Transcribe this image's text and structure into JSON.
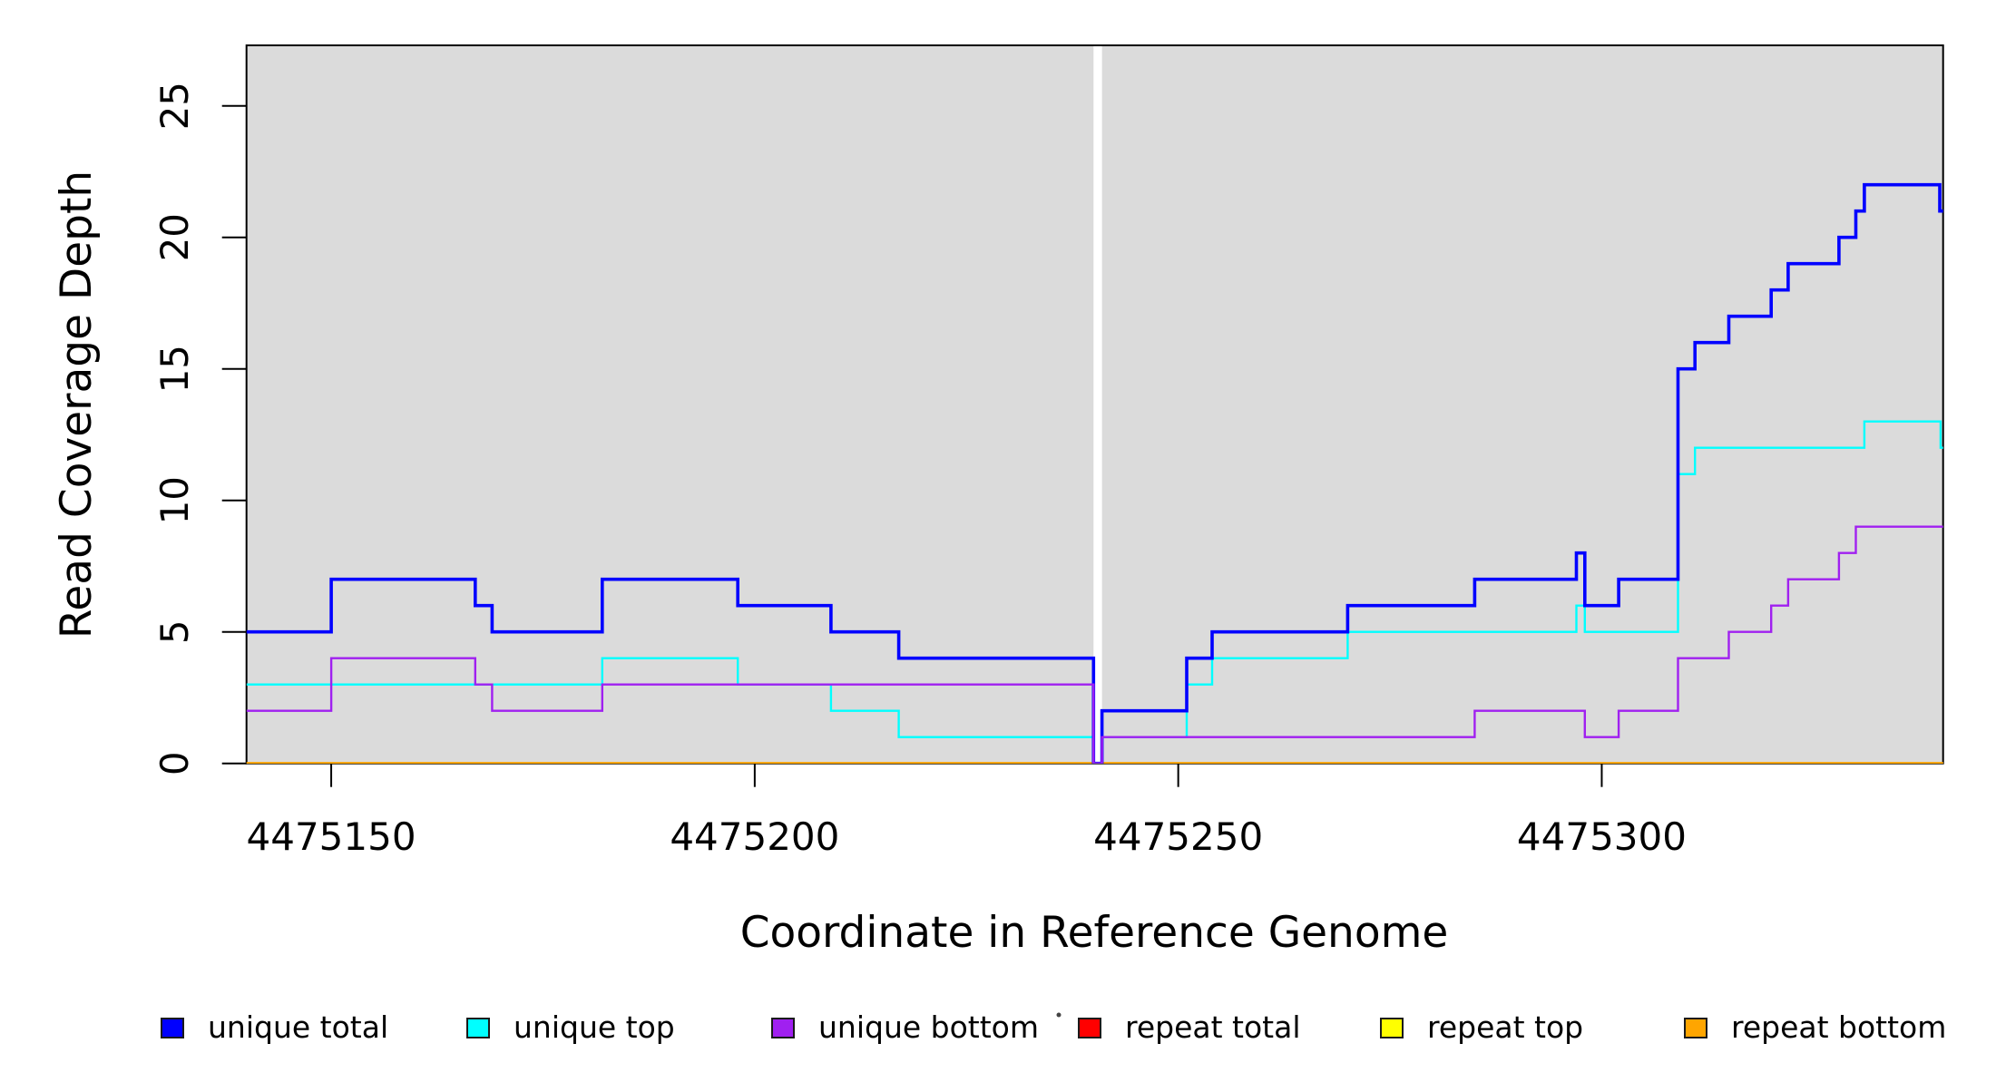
{
  "chart_data": {
    "type": "line",
    "subtype": "step",
    "title": "",
    "xlabel": "Coordinate in Reference Genome",
    "ylabel": "Read Coverage Depth",
    "xlim": [
      4475140,
      4475340.3
    ],
    "ylim": [
      0,
      27.3
    ],
    "grid": false,
    "legend_position": "bottom",
    "page_background": "#FFFFFF",
    "plot_background": "#DBDBDB",
    "axis_color": "#000000",
    "x_ticks": [
      {
        "value": 4475150,
        "label": "4475150"
      },
      {
        "value": 4475200,
        "label": "4475200"
      },
      {
        "value": 4475250,
        "label": "4475250"
      },
      {
        "value": 4475300,
        "label": "4475300"
      }
    ],
    "y_ticks": [
      {
        "value": 0,
        "label": "0"
      },
      {
        "value": 5,
        "label": "5"
      },
      {
        "value": 10,
        "label": "10"
      },
      {
        "value": 15,
        "label": "15"
      },
      {
        "value": 20,
        "label": "20"
      },
      {
        "value": 25,
        "label": "25"
      }
    ],
    "coverage_gap": {
      "from": 4475240,
      "to": 4475241,
      "color": "#FFFFFF"
    },
    "series": [
      {
        "name": "repeat total",
        "color": "#FF0000",
        "line_width": 2.4,
        "steps": [
          [
            4475140,
            0
          ]
        ]
      },
      {
        "name": "repeat top",
        "color": "#FFFF00",
        "line_width": 2.4,
        "steps": [
          [
            4475140,
            0
          ]
        ]
      },
      {
        "name": "repeat bottom",
        "color": "#FFA500",
        "line_width": 3.2,
        "steps": [
          [
            4475140,
            0
          ]
        ]
      },
      {
        "name": "unique top",
        "color": "#00FFFF",
        "line_width": 2.4,
        "steps": [
          [
            4475140,
            3
          ],
          [
            4475182,
            4
          ],
          [
            4475198,
            3
          ],
          [
            4475209,
            2
          ],
          [
            4475217,
            1
          ],
          [
            4475240,
            0
          ],
          [
            4475241,
            1
          ],
          [
            4475251,
            3
          ],
          [
            4475254,
            4
          ],
          [
            4475270,
            5
          ],
          [
            4475297,
            6
          ],
          [
            4475298,
            5
          ],
          [
            4475309,
            11
          ],
          [
            4475311,
            12
          ],
          [
            4475331,
            13
          ],
          [
            4475340,
            12
          ]
        ]
      },
      {
        "name": "unique total",
        "color": "#0000FF",
        "line_width": 3.6,
        "steps": [
          [
            4475140,
            5
          ],
          [
            4475150,
            7
          ],
          [
            4475167,
            6
          ],
          [
            4475169,
            5
          ],
          [
            4475182,
            7
          ],
          [
            4475198,
            6
          ],
          [
            4475209,
            5
          ],
          [
            4475217,
            4
          ],
          [
            4475240,
            0
          ],
          [
            4475241,
            2
          ],
          [
            4475251,
            4
          ],
          [
            4475254,
            5
          ],
          [
            4475270,
            6
          ],
          [
            4475285,
            7
          ],
          [
            4475297,
            8
          ],
          [
            4475298,
            6
          ],
          [
            4475302,
            7
          ],
          [
            4475309,
            15
          ],
          [
            4475311,
            16
          ],
          [
            4475315,
            17
          ],
          [
            4475320,
            18
          ],
          [
            4475322,
            19
          ],
          [
            4475328,
            20
          ],
          [
            4475330,
            21
          ],
          [
            4475331,
            22
          ],
          [
            4475339.9,
            21
          ]
        ]
      },
      {
        "name": "unique bottom",
        "color": "#A020F0",
        "line_width": 2.4,
        "steps": [
          [
            4475140,
            2
          ],
          [
            4475150,
            4
          ],
          [
            4475167,
            3
          ],
          [
            4475169,
            2
          ],
          [
            4475182,
            3
          ],
          [
            4475240,
            0
          ],
          [
            4475241,
            1
          ],
          [
            4475285,
            2
          ],
          [
            4475298,
            1
          ],
          [
            4475302,
            2
          ],
          [
            4475309,
            4
          ],
          [
            4475315,
            5
          ],
          [
            4475320,
            6
          ],
          [
            4475322,
            7
          ],
          [
            4475328,
            8
          ],
          [
            4475330,
            9
          ]
        ]
      }
    ],
    "legend": [
      {
        "label": "unique total",
        "color": "#0000FF"
      },
      {
        "label": "unique top",
        "color": "#00FFFF"
      },
      {
        "label": "unique bottom",
        "color": "#A020F0"
      },
      {
        "label": "repeat total",
        "color": "#FF0000"
      },
      {
        "label": "repeat top",
        "color": "#FFFF00"
      },
      {
        "label": "repeat bottom",
        "color": "#FFA500"
      }
    ]
  }
}
